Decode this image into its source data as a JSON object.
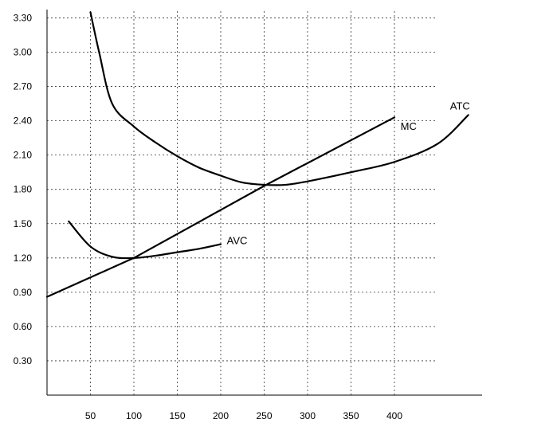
{
  "chart_data": {
    "type": "line",
    "y_ticks": [
      "3.30",
      "3.00",
      "2.70",
      "2.40",
      "2.10",
      "1.80",
      "1.50",
      "1.20",
      "0.90",
      "0.60",
      "0.30"
    ],
    "x_ticks": [
      "50",
      "100",
      "150",
      "200",
      "250",
      "300",
      "350",
      "400"
    ],
    "series": [
      {
        "name": "MC",
        "x": [
          0,
          100,
          250,
          400
        ],
        "y": [
          0.86,
          1.2,
          1.83,
          2.43
        ]
      },
      {
        "name": "AVC",
        "x": [
          25,
          50,
          75,
          100,
          125,
          150,
          175,
          200
        ],
        "y": [
          1.52,
          1.3,
          1.21,
          1.2,
          1.22,
          1.25,
          1.28,
          1.32
        ]
      },
      {
        "name": "ATC",
        "x": [
          50,
          60,
          75,
          100,
          125,
          150,
          175,
          200,
          225,
          250,
          275,
          300,
          350,
          400,
          450,
          485
        ],
        "y": [
          3.35,
          3.0,
          2.55,
          2.35,
          2.21,
          2.09,
          1.99,
          1.92,
          1.86,
          1.84,
          1.84,
          1.87,
          1.95,
          2.04,
          2.2,
          2.45
        ]
      }
    ],
    "annotations": [
      {
        "text": "MC",
        "x": 407,
        "y": 2.32
      },
      {
        "text": "AVC",
        "x": 207,
        "y": 1.32
      },
      {
        "text": "ATC",
        "x": 464,
        "y": 2.5
      }
    ],
    "grid": true
  }
}
